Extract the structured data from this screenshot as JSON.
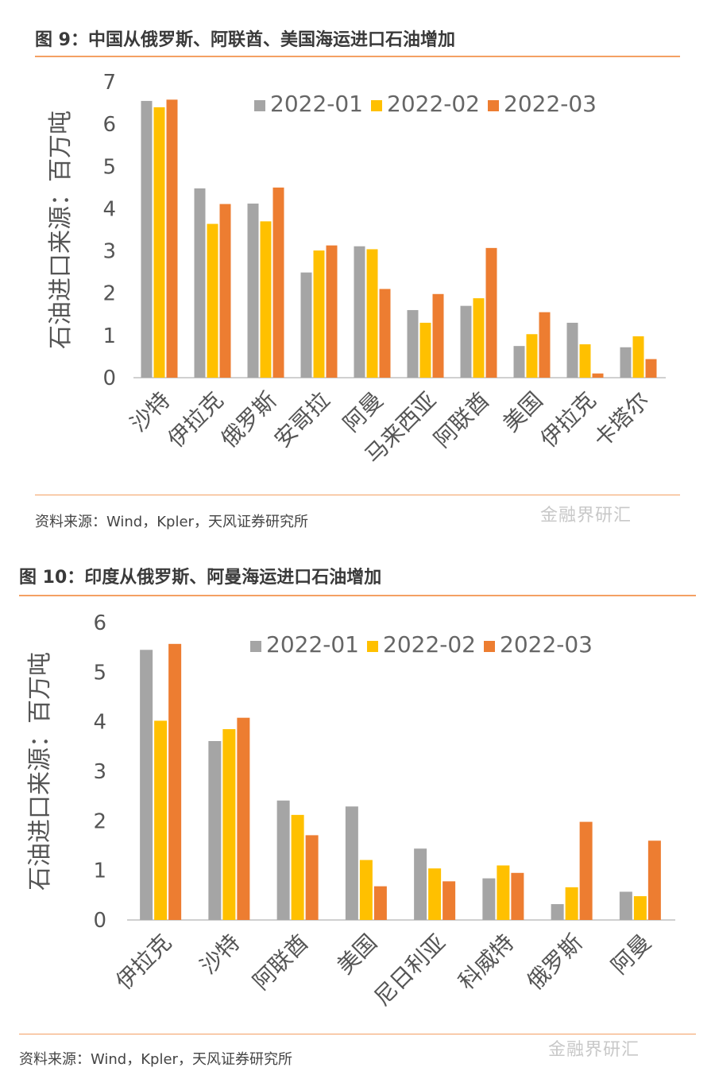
{
  "colors": {
    "series": [
      "#a5a5a5",
      "#ffc000",
      "#ed7d31"
    ],
    "rule": "#f4a063"
  },
  "figure1": {
    "title": "图 9：中国从俄罗斯、阿联酋、美国海运进口石油增加",
    "source": "资料来源：Wind，Kpler，天风证券研究所",
    "watermark": "金融界研汇"
  },
  "figure2": {
    "title": "图 10：印度从俄罗斯、阿曼海运进口石油增加",
    "source": "资料来源：Wind，Kpler，天风证券研究所",
    "watermark": "金融界研汇"
  },
  "chart_data": [
    {
      "type": "bar",
      "title": "图 9：中国从俄罗斯、阿联酋、美国海运进口石油增加",
      "ylabel": "石油进口来源：百万吨",
      "xlabel": "",
      "ylim": [
        0,
        7
      ],
      "yticks": [
        "0",
        "1",
        "2",
        "3",
        "4",
        "5",
        "6",
        "7"
      ],
      "grid": false,
      "legend_position": "top-right",
      "categories": [
        "沙特",
        "伊拉克",
        "俄罗斯",
        "安哥拉",
        "阿曼",
        "马来西亚",
        "阿联酋",
        "美国",
        "伊拉克",
        "卡塔尔"
      ],
      "series": [
        {
          "name": "2022-01",
          "values": [
            6.55,
            4.48,
            4.12,
            2.49,
            3.11,
            1.6,
            1.7,
            0.75,
            1.3,
            0.72
          ]
        },
        {
          "name": "2022-02",
          "values": [
            6.4,
            3.64,
            3.7,
            3.01,
            3.04,
            1.3,
            1.88,
            1.03,
            0.79,
            0.98
          ]
        },
        {
          "name": "2022-03",
          "values": [
            6.58,
            4.11,
            4.5,
            3.13,
            2.1,
            1.98,
            3.07,
            1.55,
            0.1,
            0.44
          ]
        }
      ]
    },
    {
      "type": "bar",
      "title": "图 10：印度从俄罗斯、阿曼海运进口石油增加",
      "ylabel": "石油进口来源：百万吨",
      "xlabel": "",
      "ylim": [
        0,
        6
      ],
      "yticks": [
        "0",
        "1",
        "2",
        "3",
        "4",
        "5",
        "6"
      ],
      "grid": false,
      "legend_position": "top-right",
      "categories": [
        "伊拉克",
        "沙特",
        "阿联酋",
        "美国",
        "尼日利亚",
        "科威特",
        "俄罗斯",
        "阿曼"
      ],
      "series": [
        {
          "name": "2022-01",
          "values": [
            5.45,
            3.61,
            2.41,
            2.29,
            1.44,
            0.84,
            0.32,
            0.57
          ]
        },
        {
          "name": "2022-02",
          "values": [
            4.02,
            3.85,
            2.12,
            1.21,
            1.04,
            1.1,
            0.66,
            0.48
          ]
        },
        {
          "name": "2022-03",
          "values": [
            5.57,
            4.08,
            1.71,
            0.68,
            0.78,
            0.95,
            1.98,
            1.6
          ]
        }
      ]
    }
  ]
}
